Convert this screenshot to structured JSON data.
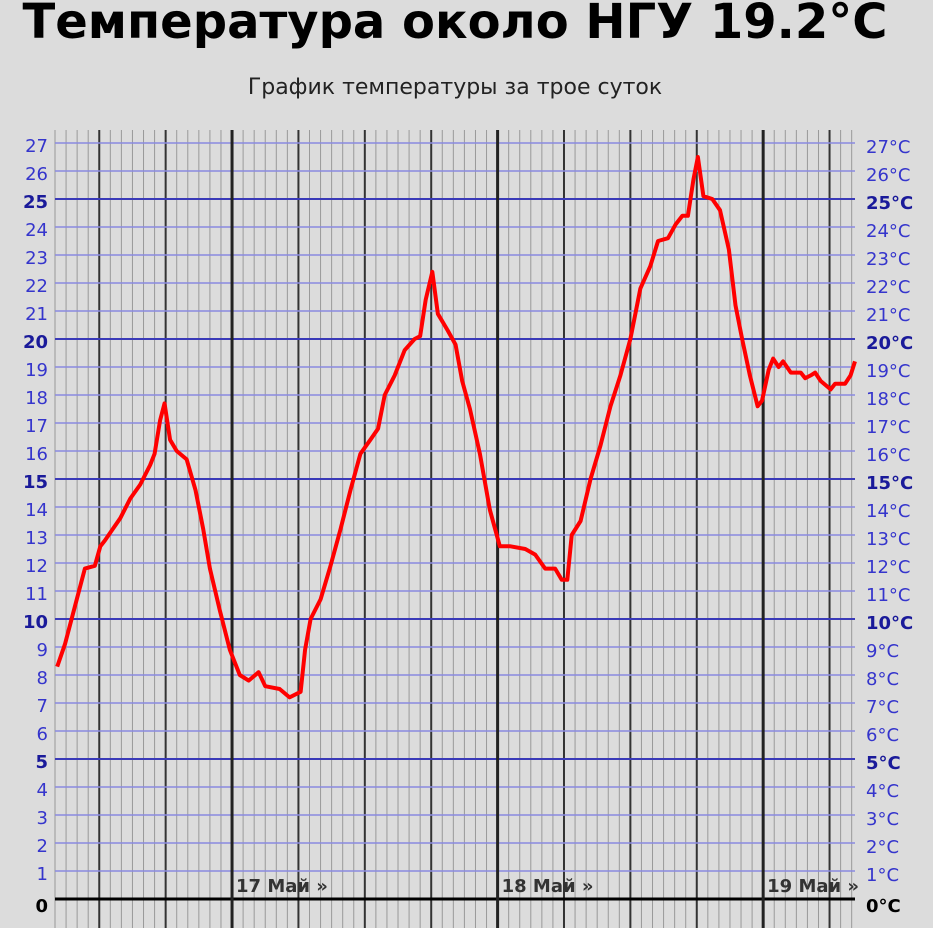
{
  "chart_data": {
    "type": "line",
    "title": "Температура около НГУ 19.2°C",
    "subtitle": "График температуры за трое суток",
    "x": [
      0.2,
      0.9,
      1.5,
      2.3,
      2.7,
      3.6,
      4.1,
      4.5,
      5.2,
      5.9,
      6.8,
      7.7,
      8.6,
      9.0,
      9.5,
      9.9,
      10.4,
      11.0,
      11.9,
      12.7,
      13.4,
      14.0,
      14.9,
      15.8,
      16.7,
      17.5,
      18.4,
      19.0,
      20.3,
      21.2,
      22.2,
      22.6,
      23.1,
      24.0,
      24.9,
      25.8,
      26.7,
      27.6,
      28.5,
      29.2,
      29.8,
      30.7,
      31.6,
      32.5,
      33.0,
      33.5,
      34.1,
      34.6,
      35.5,
      36.2,
      36.8,
      37.5,
      38.4,
      39.3,
      40.2,
      41.1,
      42.5,
      43.4,
      44.3,
      45.2,
      45.8,
      46.3,
      46.7,
      47.5,
      48.4,
      49.3,
      50.2,
      51.1,
      52.0,
      52.9,
      53.8,
      54.5,
      55.4,
      56.1,
      56.7,
      57.2,
      57.7,
      58.1,
      58.6,
      59.4,
      60.1,
      60.9,
      61.5,
      62.1,
      62.8,
      63.5,
      63.9,
      64.5,
      64.9,
      65.4,
      65.8,
      66.5,
      67.4,
      67.8,
      68.3,
      68.7,
      69.2,
      70.1,
      70.5,
      71.4,
      71.9,
      72.3
    ],
    "series": [
      {
        "name": "Температура",
        "color": "#ff0000",
        "values": [
          8.3,
          9.1,
          10.0,
          11.2,
          11.8,
          11.9,
          12.6,
          12.8,
          13.2,
          13.6,
          14.3,
          14.8,
          15.5,
          15.9,
          17.1,
          17.7,
          16.4,
          16.0,
          15.7,
          14.6,
          13.2,
          11.8,
          10.3,
          8.9,
          8.0,
          7.8,
          8.1,
          7.6,
          7.5,
          7.2,
          7.4,
          8.9,
          10.0,
          10.7,
          11.9,
          13.2,
          14.6,
          15.9,
          16.4,
          16.8,
          18.0,
          18.7,
          19.6,
          20.0,
          20.1,
          21.4,
          22.4,
          20.9,
          20.3,
          19.8,
          18.5,
          17.5,
          15.9,
          13.9,
          12.6,
          12.6,
          12.5,
          12.3,
          11.8,
          11.8,
          11.4,
          11.4,
          13.0,
          13.5,
          15.0,
          16.2,
          17.6,
          18.7,
          20.0,
          21.8,
          22.6,
          23.5,
          23.6,
          24.1,
          24.4,
          24.4,
          25.7,
          26.5,
          25.1,
          25.0,
          24.6,
          23.2,
          21.2,
          20.0,
          18.7,
          17.6,
          17.8,
          18.9,
          19.3,
          19.0,
          19.2,
          18.8,
          18.8,
          18.6,
          18.7,
          18.8,
          18.5,
          18.2,
          18.4,
          18.4,
          18.7,
          19.2
        ]
      }
    ],
    "xlim": [
      0,
      72.3
    ],
    "xticks": [
      {
        "value": 16,
        "label": "17 Май »"
      },
      {
        "value": 40,
        "label": "18 Май »"
      },
      {
        "value": 64,
        "label": "19 Май »"
      }
    ],
    "minor_xgrid_step": 1,
    "major_xgrid_step": 6,
    "ylim": [
      0,
      27
    ],
    "yticks": [
      0,
      1,
      2,
      3,
      4,
      5,
      6,
      7,
      8,
      9,
      10,
      11,
      12,
      13,
      14,
      15,
      16,
      17,
      18,
      19,
      20,
      21,
      22,
      23,
      24,
      25,
      26,
      27
    ],
    "y2lim": [
      0,
      27
    ],
    "y2ticks": [
      {
        "value": 0,
        "label": "0°C"
      },
      {
        "value": 1,
        "label": "1°C"
      },
      {
        "value": 2,
        "label": "2°C"
      },
      {
        "value": 3,
        "label": "3°C"
      },
      {
        "value": 4,
        "label": "4°C"
      },
      {
        "value": 5,
        "label": "5°C"
      },
      {
        "value": 6,
        "label": "6°C"
      },
      {
        "value": 7,
        "label": "7°C"
      },
      {
        "value": 8,
        "label": "8°C"
      },
      {
        "value": 9,
        "label": "9°C"
      },
      {
        "value": 10,
        "label": "10°C"
      },
      {
        "value": 11,
        "label": "11°C"
      },
      {
        "value": 12,
        "label": "12°C"
      },
      {
        "value": 13,
        "label": "13°C"
      },
      {
        "value": 14,
        "label": "14°C"
      },
      {
        "value": 15,
        "label": "15°C"
      },
      {
        "value": 16,
        "label": "16°C"
      },
      {
        "value": 17,
        "label": "17°C"
      },
      {
        "value": 18,
        "label": "18°C"
      },
      {
        "value": 19,
        "label": "19°C"
      },
      {
        "value": 20,
        "label": "20°C"
      },
      {
        "value": 21,
        "label": "21°C"
      },
      {
        "value": 22,
        "label": "22°C"
      },
      {
        "value": 23,
        "label": "23°C"
      },
      {
        "value": 24,
        "label": "24°C"
      },
      {
        "value": 25,
        "label": "25°C"
      },
      {
        "value": 26,
        "label": "26°C"
      },
      {
        "value": 27,
        "label": "27°C"
      }
    ],
    "y_major_step": 5,
    "grid": true
  }
}
